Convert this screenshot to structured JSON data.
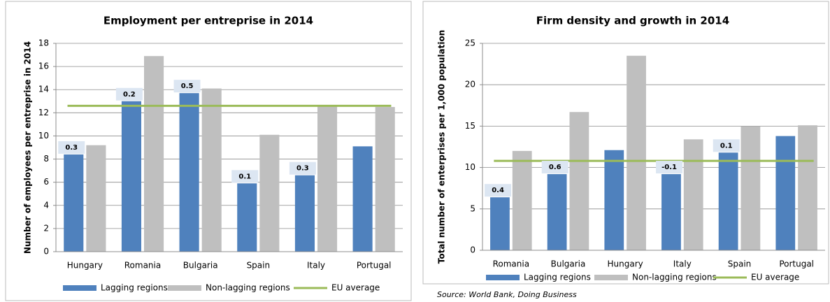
{
  "chart_data": [
    {
      "type": "bar",
      "title": "Employment per entreprise in 2014",
      "y_label": "Number of employees per entreprise in 2014",
      "categories": [
        "Hungary",
        "Romania",
        "Bulgaria",
        "Spain",
        "Italy",
        "Portugal"
      ],
      "series": [
        {
          "name": "Lagging regions",
          "color": "#4f81bd",
          "values": [
            8.4,
            13.0,
            13.7,
            5.9,
            6.6,
            9.1
          ],
          "annotations": [
            0.3,
            0.2,
            0.5,
            0.1,
            0.3,
            null
          ]
        },
        {
          "name": "Non-lagging regions",
          "color": "#bfbfbf",
          "values": [
            9.2,
            16.9,
            14.1,
            10.1,
            12.6,
            12.5
          ]
        }
      ],
      "reference_line": {
        "name": "EU average",
        "color": "#9bbb59",
        "value": 12.6
      },
      "ylim": [
        0,
        18
      ],
      "yticks": [
        0,
        2,
        4,
        6,
        8,
        10,
        12,
        14,
        16,
        18
      ],
      "grid": true
    },
    {
      "type": "bar",
      "title": "Firm density and growth in 2014",
      "y_label": "Total number of enterprises per 1,000 population",
      "categories": [
        "Romania",
        "Bulgaria",
        "Hungary",
        "Italy",
        "Spain",
        "Portugal"
      ],
      "series": [
        {
          "name": "Lagging regions",
          "color": "#4f81bd",
          "values": [
            6.4,
            9.2,
            12.1,
            9.2,
            11.8,
            13.8
          ],
          "annotations": [
            0.4,
            0.6,
            null,
            -0.1,
            0.1,
            null
          ]
        },
        {
          "name": "Non-lagging regions",
          "color": "#bfbfbf",
          "values": [
            12.0,
            16.7,
            23.5,
            13.4,
            15.0,
            15.1
          ]
        }
      ],
      "reference_line": {
        "name": "EU average",
        "color": "#9bbb59",
        "value": 10.8
      },
      "ylim": [
        0,
        25
      ],
      "yticks": [
        0,
        5,
        10,
        15,
        20,
        25
      ],
      "grid": true,
      "source": "Source: World Bank, Doing Business"
    }
  ]
}
